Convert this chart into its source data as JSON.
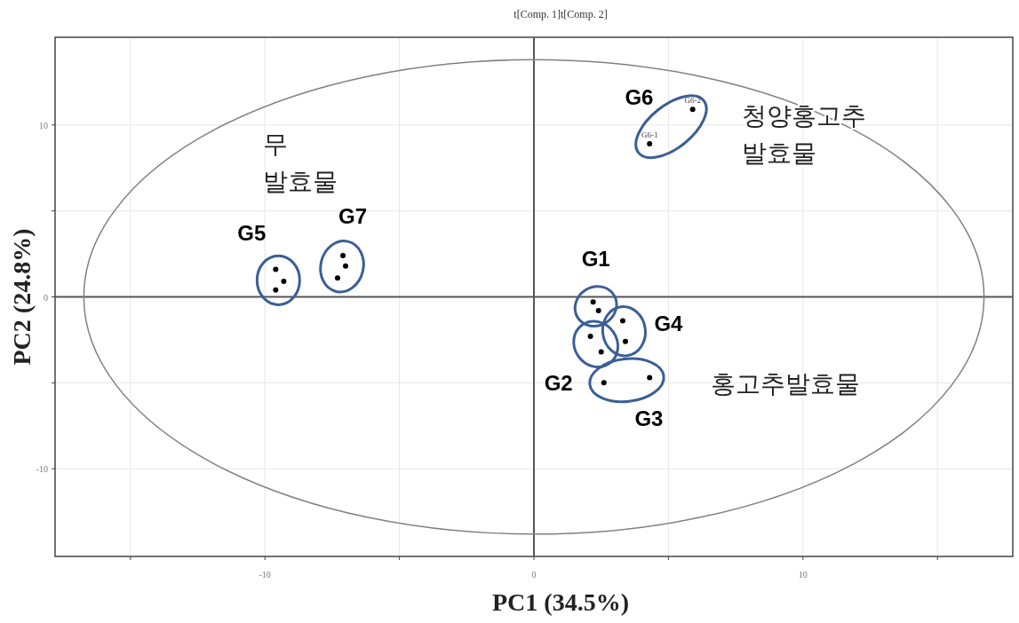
{
  "chart_data": {
    "type": "scatter",
    "title": "t[Comp. 1]t[Comp. 2]",
    "xlabel": "PC1 (34.5%)",
    "ylabel": "PC2 (24.8%)",
    "xlim": [
      -17.8,
      17.8
    ],
    "ylim": [
      -15.1,
      15.1
    ],
    "xticks": [
      {
        "value": -15,
        "label": null
      },
      -10,
      {
        "value": -5,
        "label": null
      },
      0,
      {
        "value": 5,
        "label": null
      },
      10,
      {
        "value": 15,
        "label": null
      }
    ],
    "yticks": [
      -10,
      {
        "value": -5,
        "label": null
      },
      0,
      {
        "value": 5,
        "label": null
      },
      10
    ],
    "grid": true,
    "marker": "circle",
    "annotations": [
      "무\n발효물",
      "청양홍고추\n발효물",
      "홍고추발효물"
    ],
    "series": [
      {
        "name": "G1",
        "color": "#000000",
        "x": [
          2.2,
          2.4
        ],
        "values": [
          -0.3,
          -0.8
        ]
      },
      {
        "name": "G2",
        "color": "#000000",
        "x": [
          2.1,
          2.5
        ],
        "values": [
          -2.3,
          -3.2
        ]
      },
      {
        "name": "G3",
        "color": "#000000",
        "x": [
          2.6,
          4.3
        ],
        "values": [
          -5.0,
          -4.7
        ]
      },
      {
        "name": "G4",
        "color": "#000000",
        "x": [
          3.3,
          3.4
        ],
        "values": [
          -1.4,
          -2.6
        ]
      },
      {
        "name": "G5",
        "color": "#000000",
        "x": [
          -9.6,
          -9.3,
          -9.6
        ],
        "values": [
          1.6,
          0.9,
          0.4
        ]
      },
      {
        "name": "G6",
        "color": "#000000",
        "x": [
          4.3,
          5.9
        ],
        "values": [
          8.9,
          10.9
        ],
        "value_labels": [
          "G6-1",
          "G6-2"
        ]
      },
      {
        "name": "G7",
        "color": "#000000",
        "x": [
          -7.1,
          -7.0,
          -7.3
        ],
        "values": [
          2.4,
          1.8,
          1.1
        ]
      }
    ]
  }
}
